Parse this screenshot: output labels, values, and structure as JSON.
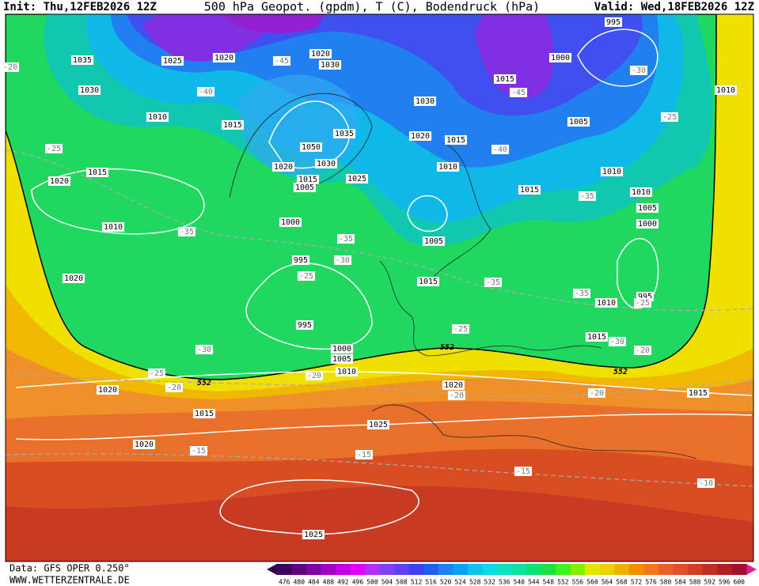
{
  "header": {
    "init": "Init: Thu,12FEB2026 12Z",
    "title": "500 hPa Geopot. (gpdm), T (C), Bodendruck (hPa)",
    "valid": "Valid: Wed,18FEB2026 12Z"
  },
  "footer": {
    "data": "Data: GFS OPER 0.250°",
    "site": "WWW.WETTERZENTRALE.DE"
  },
  "map": {
    "pressure_labels": [
      "1035",
      "1025",
      "1020",
      "1030",
      "1010",
      "1015",
      "1015",
      "1020",
      "1010",
      "1020",
      "1020",
      "1015",
      "1020",
      "1025",
      "1050",
      "1035",
      "1030",
      "1020",
      "1015",
      "1005",
      "1025",
      "1000",
      "995",
      "995",
      "1000",
      "1005",
      "1010",
      "1020",
      "1015",
      "1010",
      "1030",
      "1015",
      "1000",
      "995",
      "1010",
      "1005",
      "1010",
      "1015",
      "1010",
      "1005",
      "1000",
      "995",
      "1010",
      "1015",
      "1005",
      "1015",
      "1025",
      "1020",
      "1015",
      "1030",
      "1020"
    ],
    "temperature_labels": [
      "-45",
      "-40",
      "-25",
      "-35",
      "-35",
      "-30",
      "-25",
      "-30",
      "-25",
      "-20",
      "-20",
      "-20",
      "-15",
      "-15",
      "-15",
      "-10",
      "-25",
      "-35",
      "-35",
      "-30",
      "-20",
      "-20",
      "-40",
      "-45",
      "-30",
      "-25",
      "-35",
      "-25",
      "-20"
    ],
    "geopotential_labels": [
      "552",
      "552",
      "552"
    ]
  },
  "colorbar": {
    "labels": [
      "476",
      "480",
      "484",
      "488",
      "492",
      "496",
      "500",
      "504",
      "508",
      "512",
      "516",
      "520",
      "524",
      "528",
      "532",
      "536",
      "540",
      "544",
      "548",
      "552",
      "556",
      "560",
      "564",
      "568",
      "572",
      "576",
      "580",
      "584",
      "588",
      "592",
      "596",
      "600"
    ],
    "colors": [
      "#400060",
      "#600080",
      "#8000a0",
      "#a000c0",
      "#c000e0",
      "#e000ff",
      "#b030f0",
      "#8040f0",
      "#6040f0",
      "#4040f0",
      "#2060f0",
      "#2080f0",
      "#10a0f0",
      "#10c0f0",
      "#10d8e8",
      "#10e0c0",
      "#10e0a0",
      "#10e070",
      "#20e040",
      "#40f020",
      "#80f000",
      "#e0e800",
      "#f0d000",
      "#f0b000",
      "#f09000",
      "#f07820",
      "#e86028",
      "#e05028",
      "#d04020",
      "#c03020",
      "#b02020",
      "#a01030"
    ]
  }
}
